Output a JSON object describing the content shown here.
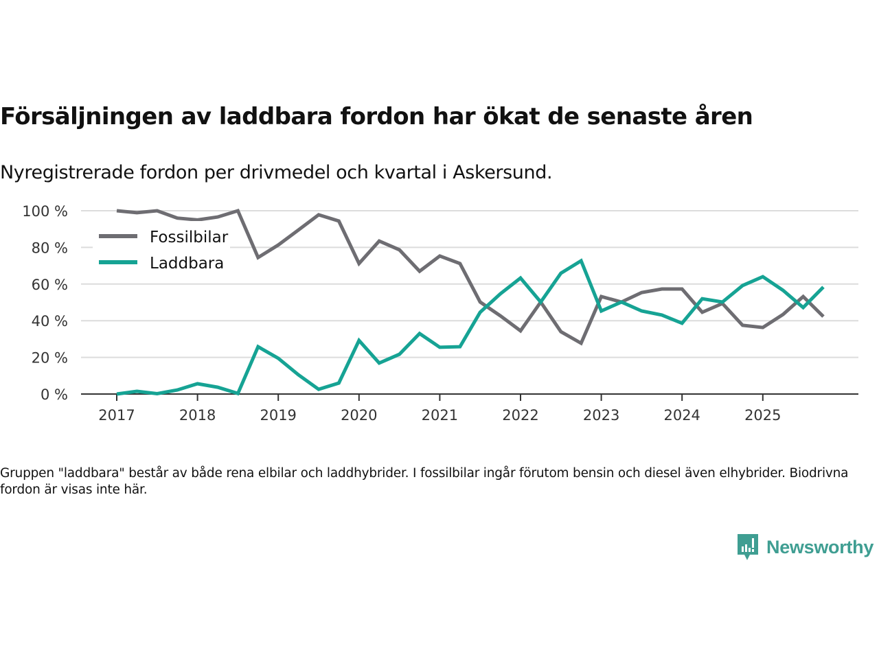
{
  "header": {
    "title": "Försäljningen av laddbara fordon har ökat de senaste åren",
    "subtitle": "Nyregistrerade fordon per drivmedel och kvartal i Askersund."
  },
  "footer": {
    "note": "Gruppen \"laddbara\" består av både rena elbilar och laddhybrider. I fossilbilar ingår förutom bensin och diesel även elhybrider. Biodrivna fordon är visas inte här.",
    "brand": "Newsworthy",
    "brand_color": "#3f9e92"
  },
  "chart_data": {
    "type": "line",
    "title": "Försäljningen av laddbara fordon har ökat de senaste åren",
    "subtitle": "Nyregistrerade fordon per drivmedel och kvartal i Askersund.",
    "xlabel": "",
    "ylabel": "",
    "x_ticks": [
      "2017",
      "2018",
      "2019",
      "2020",
      "2021",
      "2022",
      "2023",
      "2024",
      "2025"
    ],
    "y_ticks": [
      0,
      20,
      40,
      60,
      80,
      100
    ],
    "y_tick_labels": [
      "0 %",
      "20 %",
      "40 %",
      "60 %",
      "80 %",
      "100 %"
    ],
    "ylim": [
      0,
      100
    ],
    "x_start_year": 2017,
    "periods_per_year": 4,
    "grid": true,
    "legend_position": "top-left",
    "series": [
      {
        "name": "Fossilbilar",
        "color": "#6e6d72",
        "values": [
          100,
          98.9,
          100,
          96,
          95,
          96.6,
          100,
          74.5,
          81.3,
          89.5,
          97.8,
          94.4,
          71.2,
          83.5,
          78.7,
          67,
          75.3,
          71.2,
          50.2,
          42.7,
          34.5,
          50.2,
          34,
          27.7,
          53.2,
          50.2,
          55.4,
          57.3,
          57.3,
          44.6,
          49.4,
          37.5,
          36.3,
          43.4,
          53.2,
          42.3
        ]
      },
      {
        "name": "Laddbara",
        "color": "#16a394",
        "values": [
          0,
          1.5,
          0.2,
          2.2,
          5.6,
          3.7,
          0.3,
          25.8,
          19.5,
          10.5,
          2.6,
          6,
          29.2,
          16.9,
          21.7,
          33,
          25.5,
          25.8,
          44.6,
          54.7,
          63.3,
          50.2,
          65.9,
          72.7,
          45.3,
          50.2,
          45.3,
          43.1,
          38.6,
          52,
          50.2,
          59.2,
          64,
          56.6,
          47.2,
          58.4
        ]
      }
    ]
  }
}
